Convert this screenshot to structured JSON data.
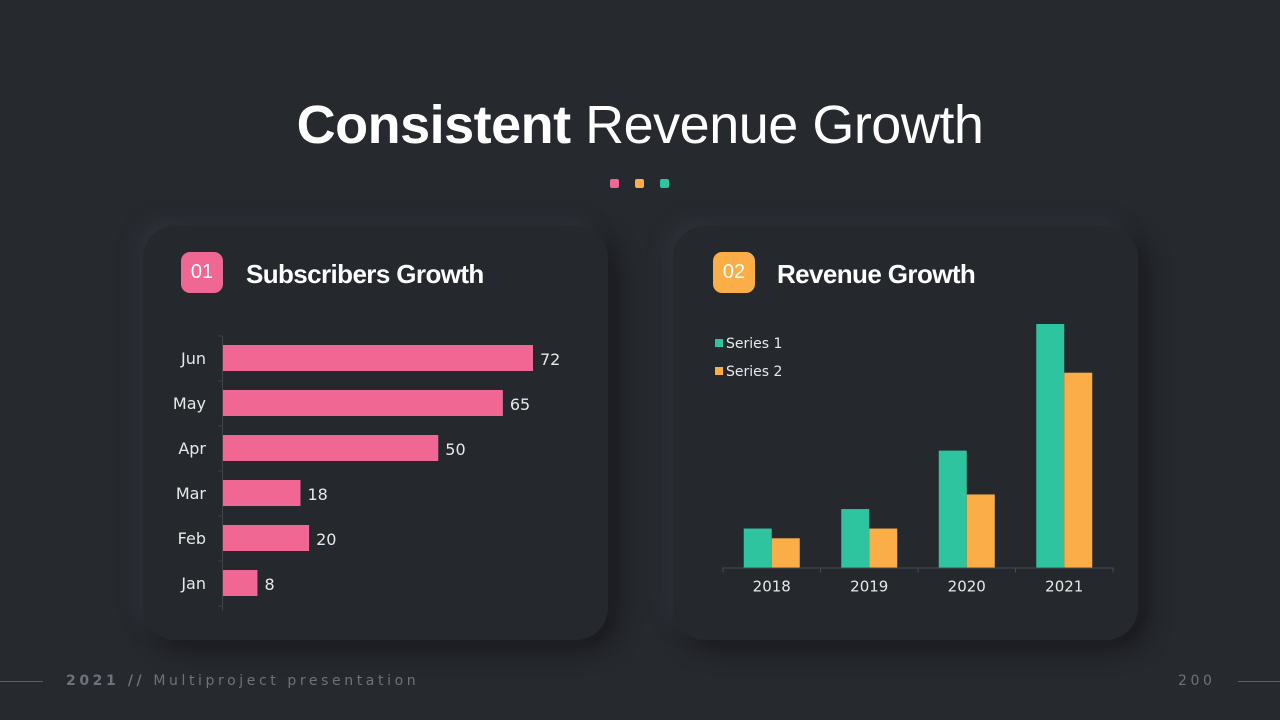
{
  "title": {
    "bold": "Consistent",
    "light": "Revenue Growth"
  },
  "colors": {
    "pink": "#ef6792",
    "orange": "#fbad47",
    "teal": "#2ec4a0",
    "background": "#26292e"
  },
  "accent_dots": [
    "#ef6792",
    "#fbad47",
    "#2ec4a0"
  ],
  "cards": [
    {
      "badge": "01",
      "title": "Subscribers Growth"
    },
    {
      "badge": "02",
      "title": "Revenue Growth"
    }
  ],
  "chart_data": [
    {
      "type": "bar",
      "orientation": "horizontal",
      "title": "Subscribers Growth",
      "categories": [
        "Jun",
        "May",
        "Apr",
        "Mar",
        "Feb",
        "Jan"
      ],
      "values": [
        72,
        65,
        50,
        18,
        20,
        8
      ],
      "data_labels": [
        "72",
        "65",
        "50",
        "18",
        "20",
        "8"
      ],
      "color": "#ef6792",
      "xlim": [
        0,
        72
      ],
      "grid": false,
      "legend": "none"
    },
    {
      "type": "bar",
      "orientation": "vertical",
      "title": "Revenue Growth",
      "categories": [
        "2018",
        "2019",
        "2020",
        "2021"
      ],
      "series": [
        {
          "name": "Series 1",
          "color": "#2ec4a0",
          "values": [
            4,
            6,
            12,
            25
          ]
        },
        {
          "name": "Series 2",
          "color": "#fbad47",
          "values": [
            3,
            4,
            7.5,
            20
          ]
        }
      ],
      "ylim": [
        0,
        25
      ],
      "grid": false,
      "legend": "top-left"
    }
  ],
  "footer": {
    "year": "2021 //",
    "text": "Multiproject presentation",
    "page": "200"
  }
}
